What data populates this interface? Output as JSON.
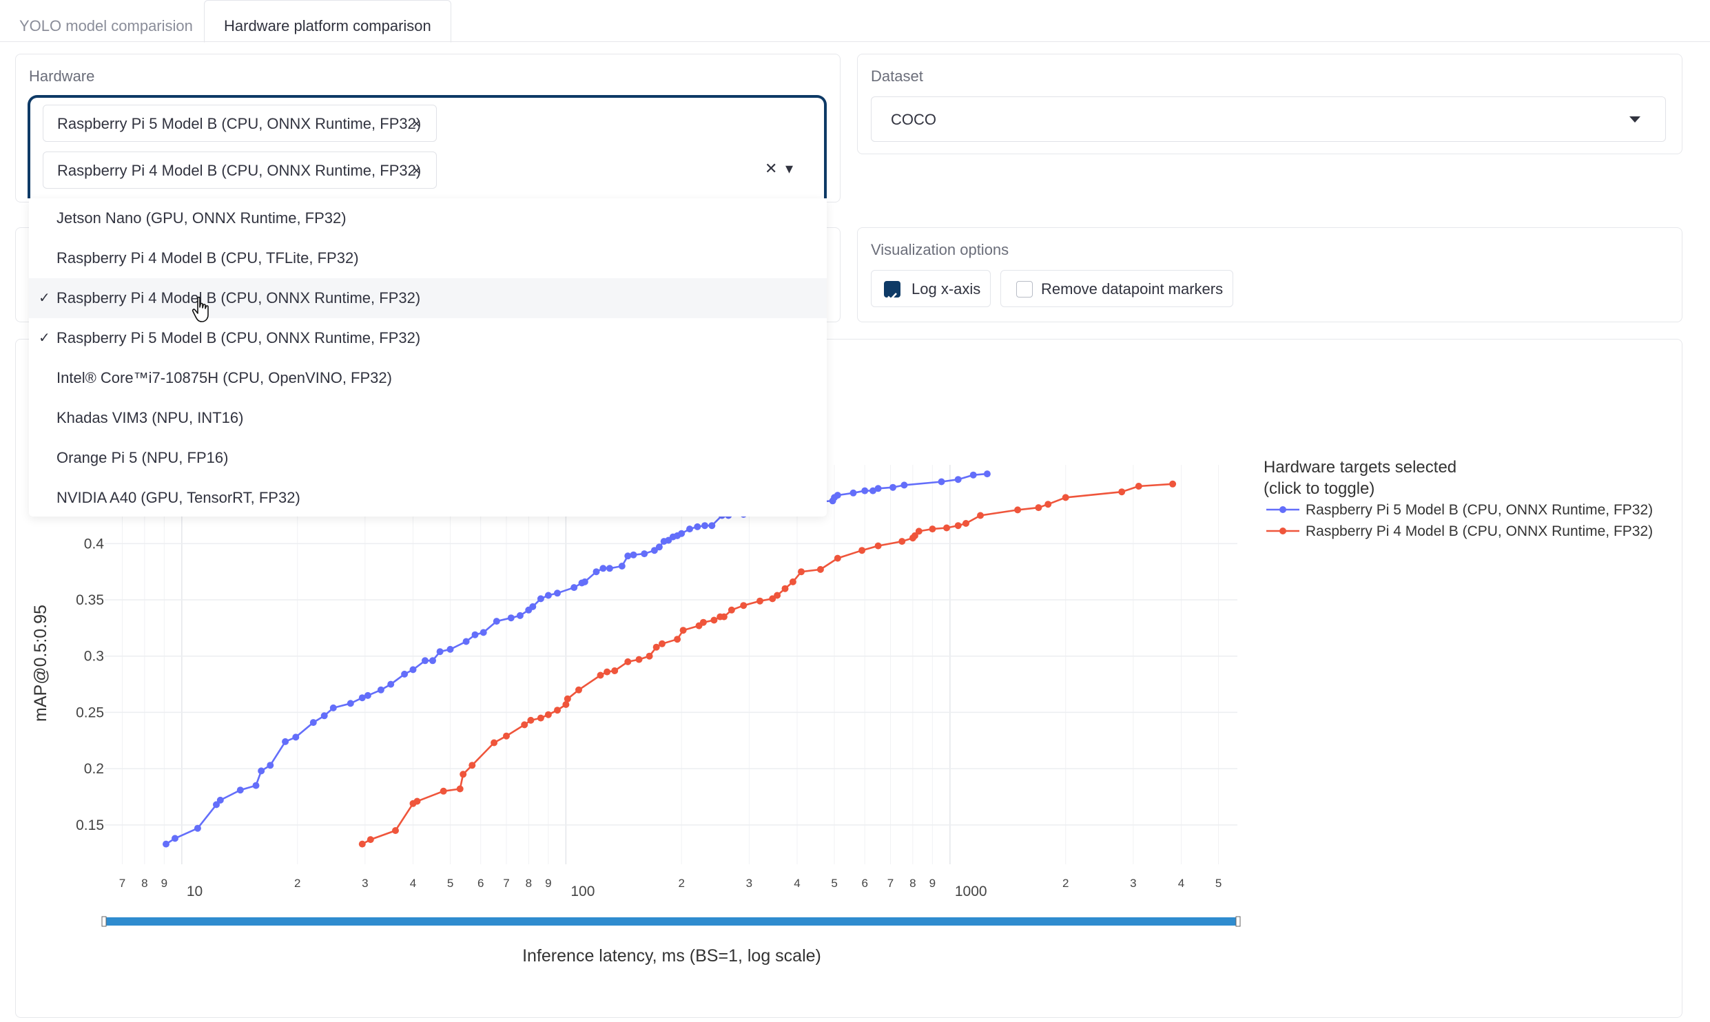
{
  "tabs": [
    {
      "label": "YOLO model comparision",
      "active": false
    },
    {
      "label": "Hardware platform comparison",
      "active": true
    }
  ],
  "hardware": {
    "label": "Hardware",
    "selected": [
      "Raspberry Pi 5 Model B (CPU, ONNX Runtime, FP32)",
      "Raspberry Pi 4 Model B (CPU, ONNX Runtime, FP32)"
    ],
    "remove_glyph": "×",
    "clear_glyph": "✕",
    "open_glyph": "▾",
    "options": [
      {
        "label": "Jetson Nano (GPU, ONNX Runtime, FP32)",
        "checked": false
      },
      {
        "label": "Raspberry Pi 4 Model B (CPU, TFLite, FP32)",
        "checked": false
      },
      {
        "label": "Raspberry Pi 4 Model B (CPU, ONNX Runtime, FP32)",
        "checked": true,
        "hovered": true
      },
      {
        "label": "Raspberry Pi 5 Model B (CPU, ONNX Runtime, FP32)",
        "checked": true
      },
      {
        "label": "Intel® Core™i7-10875H (CPU, OpenVINO, FP32)",
        "checked": false
      },
      {
        "label": "Khadas VIM3 (NPU, INT16)",
        "checked": false
      },
      {
        "label": "Orange Pi 5 (NPU, FP16)",
        "checked": false
      },
      {
        "label": "NVIDIA A40 (GPU, TensorRT, FP32)",
        "checked": false
      }
    ],
    "check_glyph": "✓"
  },
  "dataset": {
    "label": "Dataset",
    "value": "COCO"
  },
  "visualization": {
    "label": "Visualization options",
    "log_x": {
      "label": "Log x-axis",
      "checked": true
    },
    "remove_markers": {
      "label": "Remove datapoint markers",
      "checked": false
    }
  },
  "colors": {
    "accent": "#0e3a66",
    "pi5": "#636efa",
    "pi4": "#ef553b",
    "rangeslider": "#2f8ccf"
  },
  "chart_data": {
    "type": "line",
    "xlabel": "Inference latency, ms (BS=1, log scale)",
    "ylabel": "mAP@0.5:0.95",
    "x_scale": "log",
    "xlim": [
      6.3,
      5600
    ],
    "ylim": [
      0.115,
      0.47
    ],
    "x_major_ticks": [
      {
        "value": 10,
        "label": "10"
      },
      {
        "value": 100,
        "label": "100"
      },
      {
        "value": 1000,
        "label": "1000"
      }
    ],
    "x_minor_ticks": [
      {
        "value": 7,
        "label": "7"
      },
      {
        "value": 8,
        "label": "8"
      },
      {
        "value": 9,
        "label": "9"
      },
      {
        "value": 20,
        "label": "2"
      },
      {
        "value": 30,
        "label": "3"
      },
      {
        "value": 40,
        "label": "4"
      },
      {
        "value": 50,
        "label": "5"
      },
      {
        "value": 60,
        "label": "6"
      },
      {
        "value": 70,
        "label": "7"
      },
      {
        "value": 80,
        "label": "8"
      },
      {
        "value": 90,
        "label": "9"
      },
      {
        "value": 200,
        "label": "2"
      },
      {
        "value": 300,
        "label": "3"
      },
      {
        "value": 400,
        "label": "4"
      },
      {
        "value": 500,
        "label": "5"
      },
      {
        "value": 600,
        "label": "6"
      },
      {
        "value": 700,
        "label": "7"
      },
      {
        "value": 800,
        "label": "8"
      },
      {
        "value": 900,
        "label": "9"
      },
      {
        "value": 2000,
        "label": "2"
      },
      {
        "value": 3000,
        "label": "3"
      },
      {
        "value": 4000,
        "label": "4"
      },
      {
        "value": 5000,
        "label": "5"
      }
    ],
    "y_ticks": [
      0.15,
      0.2,
      0.25,
      0.3,
      0.35,
      0.4
    ],
    "grid": true,
    "legend": {
      "title": "Hardware targets selected\n(click to toggle)",
      "title_lines": [
        "Hardware targets selected",
        "(click to toggle)"
      ],
      "position": "right"
    },
    "series": [
      {
        "name": "Raspberry Pi 5 Model B (CPU, ONNX Runtime, FP32)",
        "color": "#636efa",
        "x": [
          9.1,
          9.6,
          11.0,
          12.3,
          12.6,
          14.2,
          15.6,
          16.1,
          17.0,
          18.6,
          19.8,
          22.0,
          23.5,
          24.8,
          27.5,
          29.5,
          30.5,
          33.0,
          35.0,
          38.0,
          40.0,
          43.0,
          45.0,
          47.0,
          50.0,
          55.0,
          58.0,
          61.0,
          66.0,
          72.0,
          76.0,
          80.0,
          82.0,
          86.0,
          90.0,
          95.0,
          105.0,
          110.0,
          112.0,
          120.0,
          125.0,
          130.0,
          140.0,
          145.0,
          150.0,
          160.0,
          170.0,
          175.0,
          180.0,
          185.0,
          190.0,
          195.0,
          200.0,
          210.0,
          220.0,
          230.0,
          240.0,
          255.0,
          265.0,
          290.0,
          320.0,
          400.0,
          495.0,
          500.0,
          510.0,
          560.0,
          600.0,
          630.0,
          650.0,
          710.0,
          760.0,
          950.0,
          1050.0,
          1150.0,
          1250.0
        ],
        "y": [
          0.133,
          0.138,
          0.147,
          0.168,
          0.172,
          0.181,
          0.185,
          0.198,
          0.203,
          0.224,
          0.228,
          0.241,
          0.247,
          0.254,
          0.258,
          0.263,
          0.265,
          0.27,
          0.275,
          0.284,
          0.288,
          0.296,
          0.296,
          0.304,
          0.306,
          0.313,
          0.319,
          0.321,
          0.331,
          0.334,
          0.336,
          0.341,
          0.344,
          0.351,
          0.354,
          0.356,
          0.361,
          0.365,
          0.366,
          0.375,
          0.378,
          0.378,
          0.38,
          0.389,
          0.39,
          0.391,
          0.394,
          0.397,
          0.402,
          0.403,
          0.406,
          0.407,
          0.409,
          0.413,
          0.415,
          0.416,
          0.416,
          0.425,
          0.425,
          0.426,
          0.434,
          0.436,
          0.438,
          0.441,
          0.443,
          0.445,
          0.447,
          0.447,
          0.449,
          0.45,
          0.452,
          0.455,
          0.457,
          0.461,
          0.462
        ]
      },
      {
        "name": "Raspberry Pi 4 Model B (CPU, ONNX Runtime, FP32)",
        "color": "#ef553b",
        "x": [
          29.5,
          31.0,
          36.0,
          40.0,
          41.0,
          48.0,
          53.0,
          54.0,
          57.0,
          65.0,
          70.0,
          78.0,
          81.0,
          86.0,
          90.0,
          95.0,
          100.0,
          101.0,
          108.0,
          123.0,
          128.0,
          134.0,
          145.0,
          155.0,
          165.0,
          172.0,
          178.0,
          195.0,
          202.0,
          222.0,
          228.0,
          243.0,
          252.0,
          258.0,
          270.0,
          290.0,
          320.0,
          345.0,
          355.0,
          372.0,
          390.0,
          410.0,
          460.0,
          510.0,
          590.0,
          650.0,
          750.0,
          800.0,
          810.0,
          830.0,
          900.0,
          980.0,
          1050.0,
          1100.0,
          1200.0,
          1500.0,
          1700.0,
          1800.0,
          2000.0,
          2800.0,
          3100.0,
          3800.0
        ],
        "y": [
          0.133,
          0.137,
          0.145,
          0.169,
          0.171,
          0.18,
          0.182,
          0.195,
          0.203,
          0.223,
          0.229,
          0.239,
          0.243,
          0.245,
          0.248,
          0.252,
          0.257,
          0.262,
          0.27,
          0.283,
          0.286,
          0.287,
          0.295,
          0.297,
          0.3,
          0.308,
          0.311,
          0.315,
          0.323,
          0.327,
          0.33,
          0.332,
          0.335,
          0.335,
          0.341,
          0.345,
          0.349,
          0.351,
          0.354,
          0.36,
          0.366,
          0.375,
          0.377,
          0.387,
          0.394,
          0.398,
          0.402,
          0.405,
          0.407,
          0.411,
          0.413,
          0.414,
          0.416,
          0.418,
          0.425,
          0.43,
          0.432,
          0.435,
          0.441,
          0.446,
          0.451,
          0.453
        ]
      }
    ]
  }
}
